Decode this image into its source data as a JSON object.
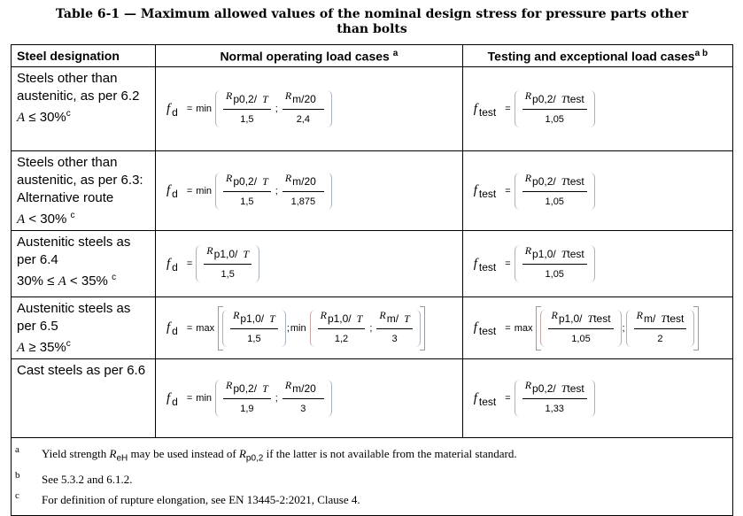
{
  "title": "Table 6-1 — Maximum allowed values of the nominal design stress for pressure parts other than bolts",
  "headers": [
    "Steel designation",
    "Normal operating load cases",
    "Testing and exceptional load cases"
  ],
  "header_sups": [
    "",
    "a",
    "a b"
  ],
  "rows": [
    {
      "desc_lines": [
        "Steels other than austenitic, as per 6.2"
      ],
      "cond": {
        "sym": "A",
        "rel": " ≤ 30%",
        "sup": "c"
      },
      "normal": {
        "lhs": "f",
        "lhs_sub": "d",
        "expr": {
          "fn": "min",
          "bracket": "paren",
          "items": [
            {
              "R": "R",
              "sub": "p0,2/",
              "T": "T",
              "Tsub": "",
              "den": "1,5"
            },
            {
              "R": "R",
              "sub": "m/20",
              "T": "",
              "Tsub": "",
              "den": "2,4"
            }
          ]
        }
      },
      "test": {
        "lhs": "f",
        "lhs_sub": "test",
        "expr": {
          "fn": "",
          "bracket": "paren",
          "items": [
            {
              "R": "R",
              "sub": "p0,2/",
              "T": "T",
              "Tsub": "test",
              "den": "1,05"
            }
          ]
        }
      }
    },
    {
      "desc_lines": [
        "Steels other than austenitic, as per 6.3:",
        "Alternative route"
      ],
      "cond": {
        "sym": "A",
        "rel": " < 30% ",
        "sup": "c"
      },
      "normal": {
        "lhs": "f",
        "lhs_sub": "d",
        "expr": {
          "fn": "min",
          "bracket": "paren",
          "items": [
            {
              "R": "R",
              "sub": "p0,2/",
              "T": "T",
              "Tsub": "",
              "den": "1,5"
            },
            {
              "R": "R",
              "sub": "m/20",
              "T": "",
              "Tsub": "",
              "den": "1,875"
            }
          ]
        }
      },
      "test": {
        "lhs": "f",
        "lhs_sub": "test",
        "expr": {
          "fn": "",
          "bracket": "paren",
          "items": [
            {
              "R": "R",
              "sub": "p0,2/",
              "T": "T",
              "Tsub": "test",
              "den": "1,05"
            }
          ]
        }
      }
    },
    {
      "desc_lines": [
        "Austenitic steels as per 6.4"
      ],
      "cond": {
        "pre": "30% ≤ ",
        "sym": "A",
        "rel": " < 35% ",
        "sup": "c"
      },
      "normal": {
        "lhs": "f",
        "lhs_sub": "d",
        "expr": {
          "fn": "",
          "bracket": "paren",
          "items": [
            {
              "R": "R",
              "sub": "p1,0/",
              "T": "T",
              "Tsub": "",
              "den": "1,5"
            }
          ]
        }
      },
      "test": {
        "lhs": "f",
        "lhs_sub": "test",
        "expr": {
          "fn": "",
          "bracket": "paren",
          "items": [
            {
              "R": "R",
              "sub": "p1,0/",
              "T": "T",
              "Tsub": "test",
              "den": "1,05"
            }
          ]
        }
      }
    },
    {
      "desc_lines": [
        "Austenitic steels as per 6.5"
      ],
      "cond": {
        "sym": "A",
        "rel": " ≥ 35%",
        "sup": "c"
      },
      "normal": {
        "lhs": "f",
        "lhs_sub": "d",
        "expr": {
          "fn": "max",
          "bracket": "brack",
          "items": [
            {
              "fn": "",
              "bracket": "paren",
              "items": [
                {
                  "R": "R",
                  "sub": "p1,0/",
                  "T": "T",
                  "Tsub": "",
                  "den": "1,5"
                }
              ]
            },
            {
              "fn": "min",
              "bracket": "paren",
              "items": [
                {
                  "R": "R",
                  "sub": "p1,0/",
                  "T": "T",
                  "Tsub": "",
                  "den": "1,2"
                },
                {
                  "R": "R",
                  "sub": "m/",
                  "T": "T",
                  "Tsub": "",
                  "den": "3"
                }
              ]
            }
          ]
        }
      },
      "test": {
        "lhs": "f",
        "lhs_sub": "test",
        "expr": {
          "fn": "max",
          "bracket": "brack",
          "items": [
            {
              "fn": "",
              "bracket": "paren",
              "items": [
                {
                  "R": "R",
                  "sub": "p1,0/",
                  "T": "T",
                  "Tsub": "test",
                  "den": "1,05"
                }
              ]
            },
            {
              "fn": "",
              "bracket": "paren",
              "items": [
                {
                  "R": "R",
                  "sub": "m/",
                  "T": "T",
                  "Tsub": "test",
                  "den": "2"
                }
              ]
            }
          ]
        }
      }
    },
    {
      "desc_lines": [
        "Cast steels as per 6.6"
      ],
      "cond": null,
      "normal": {
        "lhs": "f",
        "lhs_sub": "d",
        "expr": {
          "fn": "min",
          "bracket": "paren",
          "items": [
            {
              "R": "R",
              "sub": "p0,2/",
              "T": "T",
              "Tsub": "",
              "den": "1,9"
            },
            {
              "R": "R",
              "sub": "m/20",
              "T": "",
              "Tsub": "",
              "den": "3"
            }
          ]
        }
      },
      "test": {
        "lhs": "f",
        "lhs_sub": "test",
        "expr": {
          "fn": "",
          "bracket": "paren",
          "items": [
            {
              "R": "R",
              "sub": "p0,2/",
              "T": "T",
              "Tsub": "test",
              "den": "1,33"
            }
          ]
        }
      }
    }
  ],
  "footnotes": [
    {
      "key": "a",
      "parts": [
        "Yield strength ",
        {
          "sym": "R",
          "sub": "eH"
        },
        " may be used instead of ",
        {
          "sym": "R",
          "sub": "p0,2"
        },
        " if the latter is not available from the material standard."
      ]
    },
    {
      "key": "b",
      "parts": [
        "See 5.3.2 and 6.1.2."
      ]
    },
    {
      "key": "c",
      "parts": [
        "For definition of rupture elongation, see EN 13445-2:2021, Clause 4."
      ]
    }
  ]
}
